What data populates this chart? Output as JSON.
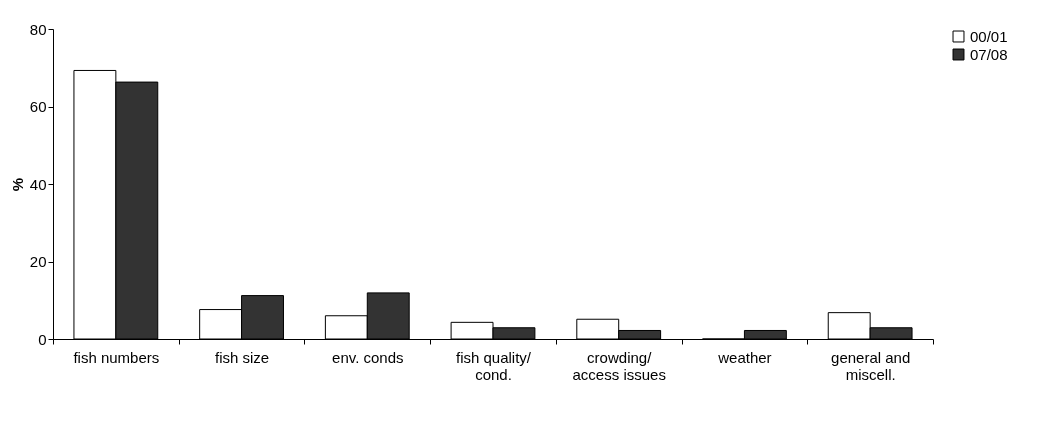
{
  "chart_data": {
    "type": "bar",
    "ylabel": "%",
    "categories": [
      "fish numbers",
      "fish size",
      "env. conds",
      "fish quality/ cond.",
      "crowding/ access issues",
      "weather",
      "general and miscell."
    ],
    "series": [
      {
        "name": "00/01",
        "color": "#ffffff",
        "values": [
          69.3,
          7.6,
          6.0,
          4.3,
          5.1,
          0,
          6.8
        ]
      },
      {
        "name": "07/08",
        "color": "#333333",
        "values": [
          66.3,
          11.2,
          11.9,
          2.9,
          2.2,
          2.2,
          2.9
        ]
      }
    ],
    "ylim": [
      0,
      80
    ],
    "yticks": [
      0,
      20,
      40,
      60,
      80
    ],
    "grid": false,
    "legend": "right"
  }
}
